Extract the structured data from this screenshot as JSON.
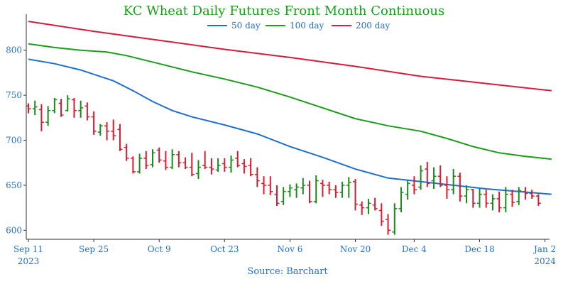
{
  "chart_data": {
    "type": "line",
    "title": "KC Wheat Daily Futures Front Month Continuous",
    "source": "Source: Barchart",
    "ylim": [
      590,
      840
    ],
    "y_ticks": [
      600,
      650,
      700,
      750,
      800
    ],
    "x_ticks": [
      {
        "i": 0,
        "line1": "Sep 11",
        "line2": "2023"
      },
      {
        "i": 10,
        "line1": "Sep 25",
        "line2": ""
      },
      {
        "i": 20,
        "line1": "Oct 9",
        "line2": ""
      },
      {
        "i": 30,
        "line1": "Oct 23",
        "line2": ""
      },
      {
        "i": 40,
        "line1": "Nov 6",
        "line2": ""
      },
      {
        "i": 50,
        "line1": "Nov 20",
        "line2": ""
      },
      {
        "i": 59,
        "line1": "Dec 4",
        "line2": ""
      },
      {
        "i": 69,
        "line1": "Dec 18",
        "line2": ""
      },
      {
        "i": 79,
        "line1": "Jan 2",
        "line2": "2024"
      }
    ],
    "n_points": 81,
    "colors": {
      "up": "#1a8a1a",
      "down": "#e0182d",
      "ma50": "#1f6fd1",
      "ma100": "#1a9e1a",
      "ma200": "#d81b3c"
    },
    "grid": false,
    "legend_position": "top-center",
    "legend": [
      {
        "name": "50 day",
        "color": "#1f6fd1"
      },
      {
        "name": "100 day",
        "color": "#1a9e1a"
      },
      {
        "name": "200 day",
        "color": "#d81b3c"
      }
    ],
    "moving_averages": [
      {
        "name": "50 day",
        "color": "#1f6fd1",
        "points": [
          [
            0,
            790
          ],
          [
            4,
            785
          ],
          [
            8,
            778
          ],
          [
            13,
            766
          ],
          [
            16,
            755
          ],
          [
            19,
            743
          ],
          [
            22,
            733
          ],
          [
            25,
            726
          ],
          [
            30,
            717
          ],
          [
            35,
            707
          ],
          [
            40,
            693
          ],
          [
            45,
            681
          ],
          [
            50,
            668
          ],
          [
            55,
            658
          ],
          [
            60,
            654
          ],
          [
            65,
            650
          ],
          [
            70,
            646
          ],
          [
            75,
            643
          ],
          [
            80,
            640
          ]
        ]
      },
      {
        "name": "100 day",
        "color": "#1a9e1a",
        "points": [
          [
            0,
            807
          ],
          [
            4,
            803
          ],
          [
            8,
            800
          ],
          [
            12,
            798
          ],
          [
            15,
            794
          ],
          [
            20,
            785
          ],
          [
            25,
            776
          ],
          [
            30,
            768
          ],
          [
            35,
            759
          ],
          [
            40,
            748
          ],
          [
            45,
            736
          ],
          [
            50,
            724
          ],
          [
            55,
            716
          ],
          [
            60,
            710
          ],
          [
            64,
            702
          ],
          [
            68,
            693
          ],
          [
            72,
            686
          ],
          [
            76,
            682
          ],
          [
            80,
            679
          ]
        ]
      },
      {
        "name": "200 day",
        "color": "#d81b3c",
        "points": [
          [
            0,
            832
          ],
          [
            10,
            821
          ],
          [
            20,
            811
          ],
          [
            30,
            801
          ],
          [
            40,
            792
          ],
          [
            50,
            782
          ],
          [
            60,
            771
          ],
          [
            70,
            763
          ],
          [
            80,
            755
          ]
        ]
      }
    ],
    "ohlc": [
      [
        0,
        738,
        741,
        730,
        735
      ],
      [
        1,
        735,
        744,
        728,
        737
      ],
      [
        2,
        734,
        740,
        710,
        720
      ],
      [
        3,
        720,
        738,
        716,
        733
      ],
      [
        4,
        733,
        747,
        730,
        745
      ],
      [
        5,
        741,
        746,
        726,
        728
      ],
      [
        6,
        733,
        750,
        732,
        746
      ],
      [
        7,
        745,
        747,
        725,
        733
      ],
      [
        8,
        733,
        744,
        725,
        736
      ],
      [
        9,
        738,
        742,
        722,
        726
      ],
      [
        10,
        726,
        732,
        706,
        710
      ],
      [
        11,
        709,
        718,
        705,
        716
      ],
      [
        12,
        716,
        720,
        700,
        710
      ],
      [
        13,
        710,
        723,
        700,
        705
      ],
      [
        14,
        712,
        718,
        688,
        690
      ],
      [
        15,
        692,
        696,
        677,
        680
      ],
      [
        16,
        680,
        682,
        663,
        665
      ],
      [
        17,
        665,
        685,
        663,
        680
      ],
      [
        18,
        680,
        688,
        668,
        672
      ],
      [
        19,
        673,
        690,
        670,
        686
      ],
      [
        20,
        689,
        692,
        675,
        678
      ],
      [
        21,
        677,
        688,
        667,
        670
      ],
      [
        22,
        670,
        690,
        668,
        684
      ],
      [
        23,
        684,
        688,
        670,
        675
      ],
      [
        24,
        675,
        681,
        668,
        670
      ],
      [
        25,
        670,
        686,
        660,
        662
      ],
      [
        26,
        663,
        678,
        657,
        670
      ],
      [
        27,
        672,
        688,
        668,
        670
      ],
      [
        28,
        670,
        680,
        662,
        668
      ],
      [
        29,
        667,
        680,
        665,
        672
      ],
      [
        30,
        674,
        680,
        665,
        670
      ],
      [
        31,
        670,
        683,
        664,
        678
      ],
      [
        32,
        680,
        688,
        670,
        672
      ],
      [
        33,
        674,
        679,
        663,
        671
      ],
      [
        34,
        672,
        680,
        660,
        662
      ],
      [
        35,
        662,
        670,
        648,
        655
      ],
      [
        36,
        652,
        660,
        640,
        650
      ],
      [
        37,
        650,
        660,
        639,
        643
      ],
      [
        38,
        640,
        650,
        627,
        630
      ],
      [
        39,
        632,
        648,
        628,
        643
      ],
      [
        40,
        643,
        651,
        637,
        647
      ],
      [
        41,
        645,
        652,
        636,
        648
      ],
      [
        42,
        647,
        658,
        640,
        650
      ],
      [
        43,
        650,
        655,
        630,
        632
      ],
      [
        44,
        632,
        661,
        630,
        655
      ],
      [
        45,
        652,
        656,
        637,
        650
      ],
      [
        46,
        650,
        654,
        640,
        645
      ],
      [
        47,
        645,
        650,
        636,
        642
      ],
      [
        48,
        642,
        654,
        636,
        650
      ],
      [
        49,
        650,
        659,
        636,
        653
      ],
      [
        50,
        654,
        657,
        622,
        629
      ],
      [
        51,
        628,
        632,
        617,
        625
      ],
      [
        52,
        625,
        635,
        618,
        630
      ],
      [
        53,
        628,
        636,
        622,
        624
      ],
      [
        54,
        622,
        630,
        605,
        610
      ],
      [
        55,
        612,
        618,
        595,
        600
      ],
      [
        56,
        598,
        630,
        595,
        624
      ],
      [
        57,
        624,
        648,
        620,
        642
      ],
      [
        58,
        640,
        655,
        634,
        652
      ],
      [
        59,
        650,
        660,
        640,
        645
      ],
      [
        60,
        648,
        672,
        645,
        666
      ],
      [
        61,
        668,
        676,
        648,
        652
      ],
      [
        62,
        655,
        670,
        646,
        660
      ],
      [
        63,
        660,
        672,
        648,
        650
      ],
      [
        64,
        650,
        660,
        635,
        645
      ],
      [
        65,
        645,
        668,
        640,
        660
      ],
      [
        66,
        660,
        664,
        632,
        638
      ],
      [
        67,
        638,
        650,
        630,
        645
      ],
      [
        68,
        645,
        646,
        625,
        630
      ],
      [
        69,
        630,
        646,
        625,
        640
      ],
      [
        70,
        640,
        645,
        625,
        630
      ],
      [
        71,
        630,
        640,
        622,
        635
      ],
      [
        72,
        635,
        643,
        620,
        625
      ],
      [
        73,
        625,
        648,
        620,
        640
      ],
      [
        74,
        640,
        645,
        626,
        631
      ],
      [
        75,
        632,
        648,
        628,
        644
      ],
      [
        76,
        643,
        648,
        634,
        641
      ],
      [
        77,
        641,
        645,
        635,
        638
      ],
      [
        78,
        638,
        640,
        627,
        630
      ]
    ]
  }
}
